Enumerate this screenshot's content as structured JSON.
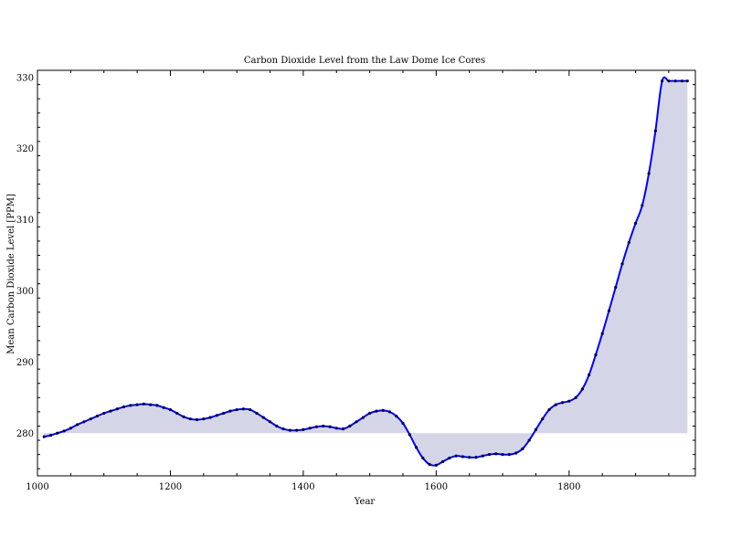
{
  "chart_data": {
    "type": "area",
    "title": "Carbon Dioxide Level from the Law Dome Ice Cores",
    "xlabel": "Year",
    "ylabel": "Mean Carbon Dioxide Level [PPM]",
    "xlim": [
      1000,
      1990
    ],
    "ylim": [
      274,
      331
    ],
    "baseline": 280,
    "xticks": [
      1000,
      1200,
      1400,
      1600,
      1800
    ],
    "yticks": [
      280,
      290,
      300,
      310,
      320,
      330
    ],
    "grid": false,
    "legend": "none",
    "colors": {
      "line": "#0000ff",
      "fill": "#d5d5e8",
      "markers": "#000033"
    },
    "x": [
      1010,
      1020,
      1030,
      1040,
      1050,
      1060,
      1070,
      1080,
      1090,
      1100,
      1110,
      1120,
      1130,
      1140,
      1150,
      1160,
      1170,
      1180,
      1190,
      1200,
      1210,
      1220,
      1230,
      1240,
      1250,
      1260,
      1270,
      1280,
      1290,
      1300,
      1310,
      1320,
      1330,
      1340,
      1350,
      1360,
      1370,
      1380,
      1390,
      1400,
      1410,
      1420,
      1430,
      1440,
      1450,
      1460,
      1470,
      1480,
      1490,
      1500,
      1510,
      1520,
      1530,
      1540,
      1550,
      1560,
      1570,
      1580,
      1590,
      1600,
      1610,
      1620,
      1630,
      1640,
      1650,
      1660,
      1670,
      1680,
      1690,
      1700,
      1710,
      1720,
      1730,
      1740,
      1750,
      1760,
      1770,
      1780,
      1790,
      1800,
      1810,
      1820,
      1830,
      1840,
      1850,
      1860,
      1870,
      1880,
      1890,
      1900,
      1910,
      1920,
      1930,
      1940,
      1950,
      1960,
      1970,
      1978
    ],
    "y": [
      279.5,
      279.7,
      280.0,
      280.3,
      280.7,
      281.2,
      281.6,
      282.0,
      282.4,
      282.8,
      283.1,
      283.4,
      283.7,
      283.9,
      284.0,
      284.1,
      284.0,
      283.9,
      283.6,
      283.3,
      282.8,
      282.3,
      282.0,
      281.9,
      282.0,
      282.2,
      282.5,
      282.8,
      283.1,
      283.3,
      283.4,
      283.3,
      282.8,
      282.2,
      281.6,
      281.0,
      280.6,
      280.4,
      280.4,
      280.5,
      280.7,
      280.9,
      281.0,
      280.9,
      280.7,
      280.6,
      281.0,
      281.6,
      282.2,
      282.8,
      283.1,
      283.2,
      283.0,
      282.4,
      281.4,
      279.8,
      278.0,
      276.5,
      275.6,
      275.5,
      276.0,
      276.5,
      276.8,
      276.7,
      276.6,
      276.6,
      276.8,
      277.0,
      277.1,
      277.0,
      277.0,
      277.2,
      277.8,
      279.0,
      280.5,
      282.0,
      283.3,
      284.0,
      284.3,
      284.5,
      285.0,
      286.2,
      288.2,
      291.0,
      294.0,
      297.2,
      300.5,
      303.8,
      306.8,
      309.5,
      312.0,
      316.5,
      322.5,
      329.5,
      329.5,
      329.5,
      329.5,
      329.5
    ]
  }
}
